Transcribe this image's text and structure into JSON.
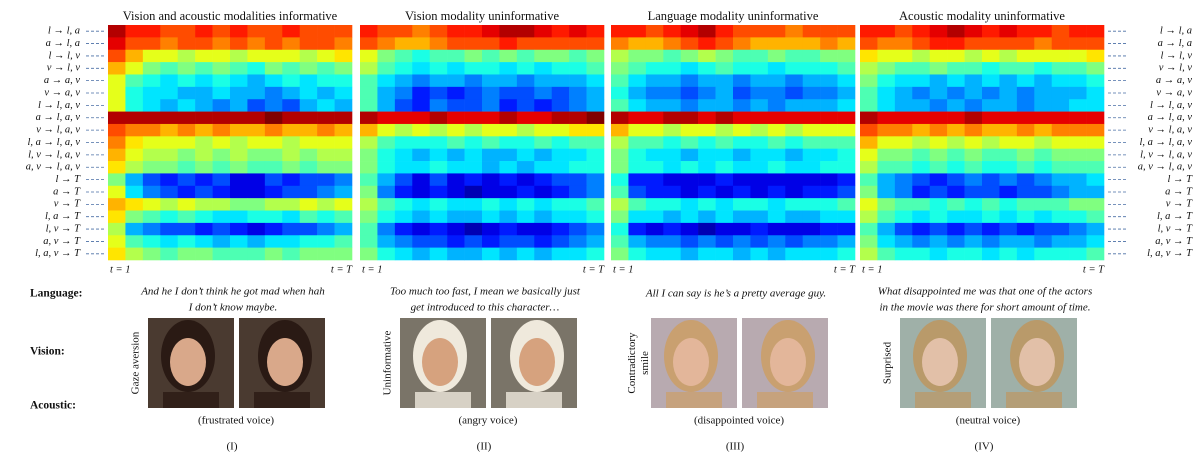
{
  "row_labels": [
    "l → l, a",
    "a → l, a",
    "l → l, v",
    "v → l, v",
    "a → a, v",
    "v → a, v",
    "l → l, a, v",
    "a → l, a, v",
    "v → l, a, v",
    "l, a → l, a, v",
    "l, v → l, a, v",
    "a, v → l, a, v",
    "l → T",
    "a → T",
    "v → T",
    "l, a → T",
    "l, v → T",
    "a, v → T",
    "l, a, v → T"
  ],
  "time_start": "t = 1",
  "time_end": "t = T",
  "row_headers": {
    "language": "Language:",
    "vision": "Vision:",
    "acoustic": "Acoustic:"
  },
  "panels": [
    {
      "title": "Vision and acoustic modalities informative",
      "heatmap": [
        [
          0.95,
          0.85,
          0.85,
          0.8,
          0.8,
          0.85,
          0.8,
          0.85,
          0.8,
          0.8,
          0.85,
          0.8,
          0.8,
          0.8
        ],
        [
          0.9,
          0.8,
          0.8,
          0.75,
          0.8,
          0.8,
          0.75,
          0.8,
          0.75,
          0.8,
          0.75,
          0.8,
          0.8,
          0.75
        ],
        [
          0.8,
          0.7,
          0.6,
          0.6,
          0.55,
          0.6,
          0.6,
          0.55,
          0.6,
          0.6,
          0.6,
          0.55,
          0.6,
          0.65
        ],
        [
          0.7,
          0.6,
          0.5,
          0.45,
          0.5,
          0.45,
          0.5,
          0.45,
          0.4,
          0.5,
          0.45,
          0.5,
          0.45,
          0.5
        ],
        [
          0.6,
          0.45,
          0.4,
          0.35,
          0.4,
          0.35,
          0.4,
          0.35,
          0.3,
          0.35,
          0.4,
          0.35,
          0.4,
          0.4
        ],
        [
          0.6,
          0.4,
          0.35,
          0.35,
          0.3,
          0.3,
          0.35,
          0.3,
          0.3,
          0.25,
          0.3,
          0.35,
          0.3,
          0.35
        ],
        [
          0.6,
          0.4,
          0.35,
          0.3,
          0.35,
          0.3,
          0.25,
          0.3,
          0.2,
          0.25,
          0.2,
          0.3,
          0.35,
          0.3
        ],
        [
          0.95,
          0.95,
          0.95,
          0.95,
          0.95,
          0.95,
          0.95,
          0.95,
          0.95,
          1.0,
          0.95,
          0.95,
          0.95,
          0.95
        ],
        [
          0.8,
          0.75,
          0.75,
          0.7,
          0.75,
          0.7,
          0.75,
          0.7,
          0.7,
          0.75,
          0.7,
          0.7,
          0.75,
          0.7
        ],
        [
          0.75,
          0.65,
          0.6,
          0.6,
          0.6,
          0.55,
          0.6,
          0.55,
          0.6,
          0.6,
          0.55,
          0.6,
          0.6,
          0.6
        ],
        [
          0.7,
          0.6,
          0.55,
          0.55,
          0.5,
          0.55,
          0.5,
          0.55,
          0.5,
          0.5,
          0.55,
          0.5,
          0.55,
          0.55
        ],
        [
          0.65,
          0.55,
          0.5,
          0.5,
          0.45,
          0.5,
          0.45,
          0.5,
          0.45,
          0.45,
          0.5,
          0.45,
          0.5,
          0.5
        ],
        [
          0.5,
          0.3,
          0.2,
          0.15,
          0.2,
          0.15,
          0.2,
          0.1,
          0.1,
          0.2,
          0.15,
          0.2,
          0.2,
          0.25
        ],
        [
          0.6,
          0.35,
          0.25,
          0.2,
          0.15,
          0.2,
          0.15,
          0.1,
          0.1,
          0.15,
          0.2,
          0.2,
          0.25,
          0.3
        ],
        [
          0.7,
          0.65,
          0.6,
          0.55,
          0.6,
          0.55,
          0.55,
          0.5,
          0.5,
          0.55,
          0.55,
          0.6,
          0.55,
          0.6
        ],
        [
          0.65,
          0.5,
          0.45,
          0.4,
          0.45,
          0.4,
          0.35,
          0.35,
          0.4,
          0.4,
          0.35,
          0.45,
          0.4,
          0.45
        ],
        [
          0.55,
          0.3,
          0.25,
          0.2,
          0.2,
          0.15,
          0.2,
          0.15,
          0.1,
          0.15,
          0.2,
          0.2,
          0.25,
          0.3
        ],
        [
          0.6,
          0.45,
          0.4,
          0.35,
          0.4,
          0.35,
          0.3,
          0.35,
          0.3,
          0.35,
          0.35,
          0.4,
          0.4,
          0.45
        ],
        [
          0.65,
          0.55,
          0.5,
          0.45,
          0.5,
          0.5,
          0.45,
          0.45,
          0.45,
          0.5,
          0.45,
          0.5,
          0.5,
          0.5
        ]
      ],
      "language": [
        "And he I don’t think he got mad when hah",
        "I don’t know maybe."
      ],
      "vision_label": [
        "Gaze aversion"
      ],
      "acoustic": "(frustrated voice)",
      "numeral": "(I)"
    },
    {
      "title": "Vision modality uninformative",
      "heatmap": [
        [
          0.85,
          0.8,
          0.8,
          0.75,
          0.8,
          0.85,
          0.85,
          0.9,
          0.95,
          0.95,
          0.9,
          0.85,
          0.9,
          0.85
        ],
        [
          0.8,
          0.75,
          0.7,
          0.7,
          0.75,
          0.8,
          0.8,
          0.8,
          0.85,
          0.8,
          0.8,
          0.8,
          0.8,
          0.8
        ],
        [
          0.6,
          0.5,
          0.45,
          0.4,
          0.45,
          0.45,
          0.5,
          0.45,
          0.5,
          0.45,
          0.5,
          0.5,
          0.45,
          0.5
        ],
        [
          0.55,
          0.45,
          0.4,
          0.35,
          0.4,
          0.35,
          0.4,
          0.4,
          0.35,
          0.4,
          0.35,
          0.4,
          0.4,
          0.45
        ],
        [
          0.45,
          0.35,
          0.3,
          0.25,
          0.3,
          0.3,
          0.25,
          0.3,
          0.3,
          0.25,
          0.3,
          0.3,
          0.3,
          0.35
        ],
        [
          0.45,
          0.3,
          0.25,
          0.15,
          0.2,
          0.15,
          0.2,
          0.25,
          0.2,
          0.2,
          0.25,
          0.2,
          0.25,
          0.3
        ],
        [
          0.45,
          0.3,
          0.2,
          0.15,
          0.25,
          0.2,
          0.2,
          0.25,
          0.15,
          0.2,
          0.15,
          0.2,
          0.25,
          0.3
        ],
        [
          0.95,
          0.9,
          0.9,
          0.9,
          0.95,
          0.9,
          0.9,
          0.9,
          0.95,
          0.9,
          0.9,
          0.95,
          0.95,
          1.0
        ],
        [
          0.7,
          0.6,
          0.55,
          0.6,
          0.55,
          0.6,
          0.55,
          0.6,
          0.6,
          0.55,
          0.6,
          0.6,
          0.65,
          0.65
        ],
        [
          0.55,
          0.45,
          0.4,
          0.4,
          0.4,
          0.45,
          0.4,
          0.45,
          0.4,
          0.4,
          0.45,
          0.4,
          0.45,
          0.45
        ],
        [
          0.5,
          0.4,
          0.35,
          0.3,
          0.35,
          0.3,
          0.35,
          0.3,
          0.3,
          0.35,
          0.3,
          0.35,
          0.35,
          0.4
        ],
        [
          0.5,
          0.4,
          0.35,
          0.35,
          0.4,
          0.35,
          0.35,
          0.3,
          0.35,
          0.3,
          0.35,
          0.35,
          0.4,
          0.4
        ],
        [
          0.45,
          0.3,
          0.2,
          0.1,
          0.2,
          0.1,
          0.15,
          0.1,
          0.15,
          0.1,
          0.15,
          0.2,
          0.2,
          0.25
        ],
        [
          0.5,
          0.25,
          0.15,
          0.1,
          0.15,
          0.1,
          0.05,
          0.1,
          0.1,
          0.15,
          0.1,
          0.15,
          0.2,
          0.25
        ],
        [
          0.55,
          0.45,
          0.4,
          0.35,
          0.4,
          0.35,
          0.35,
          0.4,
          0.35,
          0.4,
          0.35,
          0.4,
          0.4,
          0.45
        ],
        [
          0.5,
          0.4,
          0.35,
          0.3,
          0.35,
          0.3,
          0.3,
          0.35,
          0.3,
          0.35,
          0.3,
          0.35,
          0.35,
          0.4
        ],
        [
          0.45,
          0.25,
          0.15,
          0.1,
          0.15,
          0.1,
          0.05,
          0.1,
          0.15,
          0.1,
          0.1,
          0.15,
          0.2,
          0.25
        ],
        [
          0.45,
          0.3,
          0.25,
          0.2,
          0.2,
          0.15,
          0.2,
          0.15,
          0.2,
          0.2,
          0.15,
          0.2,
          0.25,
          0.3
        ],
        [
          0.5,
          0.4,
          0.35,
          0.3,
          0.35,
          0.3,
          0.3,
          0.35,
          0.3,
          0.35,
          0.3,
          0.35,
          0.35,
          0.4
        ]
      ],
      "language": [
        "Too much too fast, I mean we basically just",
        "get introduced to this character…"
      ],
      "vision_label": [
        "Uninformative"
      ],
      "acoustic": "(angry voice)",
      "numeral": "(II)"
    },
    {
      "title": "Language modality uninformative",
      "heatmap": [
        [
          0.85,
          0.85,
          0.8,
          0.85,
          0.9,
          0.95,
          0.85,
          0.8,
          0.8,
          0.8,
          0.75,
          0.8,
          0.8,
          0.8
        ],
        [
          0.75,
          0.7,
          0.7,
          0.75,
          0.8,
          0.85,
          0.8,
          0.75,
          0.7,
          0.7,
          0.7,
          0.7,
          0.75,
          0.7
        ],
        [
          0.55,
          0.5,
          0.5,
          0.45,
          0.5,
          0.55,
          0.5,
          0.45,
          0.45,
          0.5,
          0.45,
          0.45,
          0.5,
          0.5
        ],
        [
          0.5,
          0.45,
          0.4,
          0.4,
          0.35,
          0.4,
          0.45,
          0.4,
          0.4,
          0.35,
          0.4,
          0.4,
          0.4,
          0.45
        ],
        [
          0.45,
          0.35,
          0.3,
          0.3,
          0.25,
          0.3,
          0.3,
          0.25,
          0.3,
          0.3,
          0.25,
          0.3,
          0.3,
          0.35
        ],
        [
          0.4,
          0.3,
          0.25,
          0.25,
          0.2,
          0.25,
          0.3,
          0.2,
          0.25,
          0.25,
          0.2,
          0.25,
          0.25,
          0.3
        ],
        [
          0.45,
          0.35,
          0.3,
          0.3,
          0.25,
          0.3,
          0.3,
          0.25,
          0.3,
          0.25,
          0.3,
          0.3,
          0.3,
          0.35
        ],
        [
          0.95,
          0.9,
          0.9,
          0.95,
          0.95,
          0.9,
          0.95,
          0.9,
          0.9,
          0.9,
          0.9,
          0.9,
          0.9,
          0.9
        ],
        [
          0.7,
          0.6,
          0.6,
          0.55,
          0.6,
          0.6,
          0.55,
          0.6,
          0.55,
          0.6,
          0.55,
          0.6,
          0.6,
          0.6
        ],
        [
          0.55,
          0.45,
          0.45,
          0.4,
          0.45,
          0.4,
          0.45,
          0.4,
          0.4,
          0.45,
          0.4,
          0.45,
          0.45,
          0.45
        ],
        [
          0.5,
          0.4,
          0.35,
          0.35,
          0.3,
          0.35,
          0.35,
          0.3,
          0.35,
          0.35,
          0.3,
          0.35,
          0.35,
          0.4
        ],
        [
          0.5,
          0.4,
          0.4,
          0.35,
          0.4,
          0.35,
          0.4,
          0.35,
          0.35,
          0.4,
          0.35,
          0.35,
          0.4,
          0.4
        ],
        [
          0.4,
          0.15,
          0.15,
          0.1,
          0.1,
          0.1,
          0.15,
          0.1,
          0.1,
          0.1,
          0.1,
          0.1,
          0.1,
          0.15
        ],
        [
          0.45,
          0.2,
          0.15,
          0.15,
          0.1,
          0.15,
          0.1,
          0.15,
          0.1,
          0.15,
          0.1,
          0.15,
          0.15,
          0.2
        ],
        [
          0.55,
          0.45,
          0.4,
          0.4,
          0.35,
          0.4,
          0.35,
          0.4,
          0.4,
          0.35,
          0.4,
          0.4,
          0.4,
          0.45
        ],
        [
          0.5,
          0.35,
          0.35,
          0.3,
          0.35,
          0.3,
          0.35,
          0.3,
          0.3,
          0.35,
          0.3,
          0.3,
          0.35,
          0.35
        ],
        [
          0.4,
          0.15,
          0.1,
          0.15,
          0.1,
          0.05,
          0.1,
          0.1,
          0.15,
          0.1,
          0.1,
          0.1,
          0.15,
          0.15
        ],
        [
          0.45,
          0.3,
          0.25,
          0.25,
          0.2,
          0.25,
          0.2,
          0.25,
          0.2,
          0.25,
          0.2,
          0.25,
          0.25,
          0.3
        ],
        [
          0.5,
          0.4,
          0.35,
          0.35,
          0.3,
          0.35,
          0.35,
          0.3,
          0.35,
          0.3,
          0.35,
          0.35,
          0.35,
          0.4
        ]
      ],
      "language": [
        "All I can say is he’s a pretty average guy."
      ],
      "vision_label": [
        "Contradictory",
        "smile"
      ],
      "acoustic": "(disappointed voice)",
      "numeral": "(III)"
    },
    {
      "title": "Acoustic modality uninformative",
      "heatmap": [
        [
          0.85,
          0.85,
          0.8,
          0.85,
          0.9,
          0.95,
          0.9,
          0.85,
          0.9,
          0.85,
          0.85,
          0.8,
          0.85,
          0.85
        ],
        [
          0.8,
          0.75,
          0.75,
          0.8,
          0.85,
          0.85,
          0.8,
          0.8,
          0.8,
          0.8,
          0.75,
          0.8,
          0.8,
          0.8
        ],
        [
          0.65,
          0.6,
          0.6,
          0.55,
          0.6,
          0.6,
          0.55,
          0.6,
          0.55,
          0.6,
          0.6,
          0.6,
          0.6,
          0.65
        ],
        [
          0.55,
          0.5,
          0.45,
          0.45,
          0.5,
          0.45,
          0.45,
          0.4,
          0.45,
          0.45,
          0.4,
          0.45,
          0.45,
          0.5
        ],
        [
          0.5,
          0.4,
          0.35,
          0.35,
          0.3,
          0.35,
          0.3,
          0.35,
          0.3,
          0.35,
          0.3,
          0.35,
          0.35,
          0.4
        ],
        [
          0.45,
          0.35,
          0.3,
          0.25,
          0.3,
          0.25,
          0.3,
          0.25,
          0.3,
          0.25,
          0.3,
          0.3,
          0.3,
          0.35
        ],
        [
          0.45,
          0.35,
          0.3,
          0.3,
          0.25,
          0.3,
          0.25,
          0.3,
          0.3,
          0.25,
          0.3,
          0.3,
          0.35,
          0.35
        ],
        [
          0.95,
          0.9,
          0.9,
          0.9,
          0.9,
          0.9,
          0.95,
          0.9,
          0.9,
          0.9,
          0.9,
          0.9,
          0.9,
          0.9
        ],
        [
          0.8,
          0.75,
          0.75,
          0.7,
          0.75,
          0.7,
          0.75,
          0.7,
          0.7,
          0.75,
          0.7,
          0.75,
          0.75,
          0.75
        ],
        [
          0.7,
          0.6,
          0.6,
          0.55,
          0.6,
          0.55,
          0.6,
          0.55,
          0.6,
          0.6,
          0.55,
          0.6,
          0.6,
          0.6
        ],
        [
          0.6,
          0.5,
          0.5,
          0.45,
          0.5,
          0.45,
          0.5,
          0.45,
          0.45,
          0.5,
          0.45,
          0.5,
          0.5,
          0.5
        ],
        [
          0.55,
          0.45,
          0.45,
          0.4,
          0.45,
          0.4,
          0.45,
          0.4,
          0.4,
          0.45,
          0.4,
          0.45,
          0.45,
          0.45
        ],
        [
          0.45,
          0.3,
          0.25,
          0.2,
          0.15,
          0.2,
          0.25,
          0.2,
          0.25,
          0.2,
          0.25,
          0.3,
          0.3,
          0.35
        ],
        [
          0.5,
          0.3,
          0.25,
          0.15,
          0.2,
          0.15,
          0.2,
          0.2,
          0.15,
          0.2,
          0.2,
          0.25,
          0.3,
          0.3
        ],
        [
          0.6,
          0.5,
          0.45,
          0.45,
          0.4,
          0.45,
          0.4,
          0.45,
          0.4,
          0.45,
          0.45,
          0.45,
          0.5,
          0.5
        ],
        [
          0.55,
          0.45,
          0.4,
          0.35,
          0.4,
          0.35,
          0.35,
          0.4,
          0.35,
          0.4,
          0.35,
          0.4,
          0.4,
          0.45
        ],
        [
          0.45,
          0.3,
          0.2,
          0.15,
          0.2,
          0.15,
          0.2,
          0.15,
          0.2,
          0.15,
          0.2,
          0.2,
          0.25,
          0.3
        ],
        [
          0.5,
          0.35,
          0.3,
          0.25,
          0.3,
          0.25,
          0.3,
          0.25,
          0.3,
          0.3,
          0.25,
          0.3,
          0.3,
          0.35
        ],
        [
          0.55,
          0.45,
          0.4,
          0.4,
          0.35,
          0.4,
          0.4,
          0.35,
          0.4,
          0.35,
          0.4,
          0.4,
          0.4,
          0.45
        ]
      ],
      "language": [
        "What disappointed me was that one of the actors",
        "in the movie was there for short amount of time."
      ],
      "vision_label": [
        "Surprised"
      ],
      "acoustic": "(neutral voice)",
      "numeral": "(IV)"
    }
  ]
}
